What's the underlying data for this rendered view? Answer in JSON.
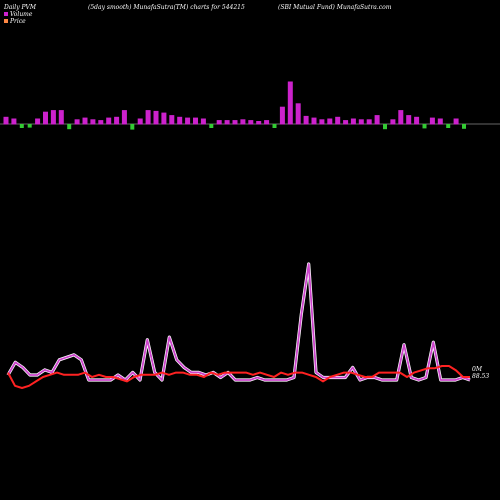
{
  "header": {
    "left": "Daily PVM",
    "center": "(5day smooth) MunafaSutra(TM) charts for 544215",
    "right": "(SBI Mutual Fund) MunafaSutra.com"
  },
  "legend": {
    "volume_label": "Volume",
    "price_label": "Price"
  },
  "end_labels": {
    "volume": "0M",
    "price": "88.53"
  },
  "colors": {
    "background": "#000000",
    "volume_up": "#cc22cc",
    "volume_down": "#33cc33",
    "volume_line": "#cc44cc",
    "price_line": "#ff2222",
    "baseline": "#888888"
  },
  "chart_data": {
    "type": "line",
    "bars_up_down": [
      1,
      1,
      0,
      0,
      1,
      1,
      1,
      1,
      0,
      1,
      1,
      1,
      1,
      1,
      1,
      1,
      0,
      1,
      1,
      1,
      1,
      1,
      1,
      1,
      1,
      1,
      0,
      1,
      1,
      1,
      1,
      1,
      1,
      1,
      0,
      1,
      1,
      1,
      1,
      1,
      1,
      1,
      1,
      1,
      1,
      1,
      1,
      1,
      0,
      1,
      1,
      1,
      1,
      0,
      1,
      1,
      0,
      1,
      0,
      1,
      1,
      1,
      1
    ],
    "volume_bars": [
      8,
      6,
      5,
      4,
      6,
      14,
      16,
      16,
      8,
      5,
      7,
      5,
      4,
      7,
      8,
      16,
      9,
      6,
      16,
      15,
      13,
      10,
      8,
      7,
      7,
      6,
      5,
      4,
      4,
      4,
      5,
      4,
      3,
      4,
      5,
      20,
      50,
      24,
      9,
      7,
      5,
      6,
      8,
      4,
      6,
      5,
      5,
      10,
      8,
      5,
      16,
      10,
      8,
      6,
      7,
      6,
      5,
      6,
      7
    ],
    "volume_line": [
      12,
      22,
      18,
      12,
      12,
      16,
      14,
      24,
      26,
      28,
      24,
      8,
      8,
      8,
      8,
      12,
      8,
      14,
      8,
      40,
      14,
      8,
      42,
      24,
      18,
      14,
      14,
      12,
      14,
      10,
      14,
      8,
      8,
      8,
      10,
      8,
      8,
      8,
      8,
      10,
      60,
      100,
      14,
      10,
      10,
      10,
      10,
      18,
      8,
      10,
      10,
      8,
      8,
      8,
      36,
      10,
      8,
      10,
      38,
      8,
      8,
      8,
      10,
      8
    ],
    "price_line": [
      8,
      2,
      1,
      2,
      4,
      6,
      7,
      8,
      7,
      7,
      7,
      8,
      6,
      7,
      6,
      6,
      5,
      4,
      6,
      7,
      7,
      7,
      8,
      7,
      8,
      8,
      7,
      7,
      6,
      8,
      7,
      8,
      8,
      8,
      8,
      7,
      8,
      7,
      6,
      8,
      7,
      8,
      8,
      7,
      6,
      4,
      6,
      7,
      8,
      8,
      7,
      6,
      6,
      8,
      8,
      8,
      8,
      6,
      8,
      9,
      10,
      10,
      11,
      11,
      9,
      6,
      6
    ],
    "xlabel": "",
    "ylabel": ""
  }
}
